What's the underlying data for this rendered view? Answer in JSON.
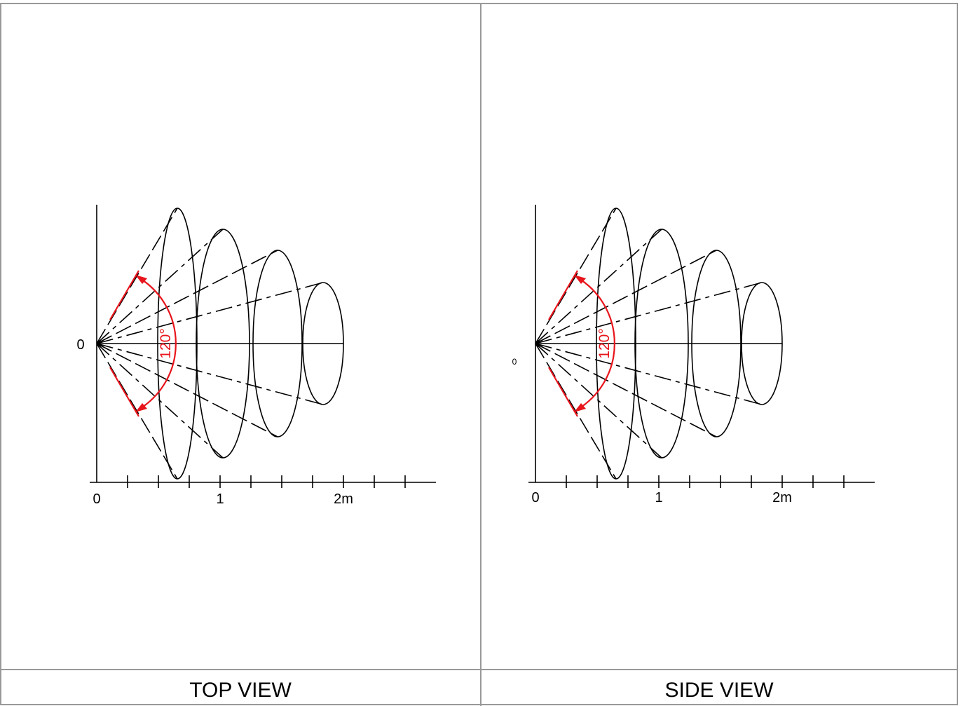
{
  "panels": [
    {
      "id": "top",
      "caption": "TOP VIEW",
      "y_axis_label": "0",
      "x_tick_labels": [
        "0",
        "1",
        "2m"
      ],
      "angle_label": "120°"
    },
    {
      "id": "side",
      "caption": "SIDE VIEW",
      "y_axis_label": "0",
      "x_tick_labels": [
        "0",
        "1",
        "2m"
      ],
      "angle_label": "120°"
    }
  ],
  "colors": {
    "ink": "#000000",
    "dimension": "#e8141b",
    "border": "#999999"
  }
}
